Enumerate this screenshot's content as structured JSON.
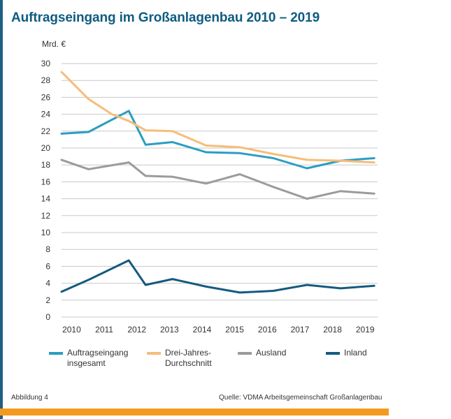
{
  "title": "Auftragseingang im Großanlagenbau 2010 – 2019",
  "figure_label": "Abbildung 4",
  "source": "Quelle: VDMA Arbeitsgemeinschaft Großanlagenbau",
  "colors": {
    "title": "#0e5c80",
    "accent_bar": "#f39a1e",
    "left_bar": "#1f5f84"
  },
  "chart_data": {
    "type": "line",
    "title": "Auftragseingang im Großanlagenbau 2010 – 2019",
    "ylabel": "Mrd. €",
    "xlabel": "",
    "grid": true,
    "ylim": [
      0,
      30
    ],
    "yticks": [
      0,
      2,
      4,
      6,
      8,
      10,
      12,
      14,
      16,
      18,
      20,
      22,
      24,
      26,
      28,
      30
    ],
    "xticks": [
      "2010",
      "2011",
      "2012",
      "2013",
      "2014",
      "2015",
      "2016",
      "2017",
      "2018",
      "2019"
    ],
    "x": [
      2009.6,
      2010.4,
      2011.1,
      2011.6,
      2012.1,
      2012.9,
      2013.9,
      2014.9,
      2015.9,
      2016.9,
      2017.9,
      2018.9
    ],
    "legend_position": "bottom",
    "series": [
      {
        "name": "Auftragseingang insgesamt",
        "legend": [
          "Auftragseingang",
          "insgesamt"
        ],
        "color": "#2a9ec0",
        "values": [
          21.7,
          21.9,
          null,
          24.4,
          20.4,
          20.7,
          19.5,
          19.4,
          18.8,
          17.6,
          18.5,
          18.8
        ]
      },
      {
        "name": "Drei-Jahres-Durchschnitt",
        "legend": [
          "Drei-Jahres-",
          "Durchschnitt"
        ],
        "color": "#f6bd79",
        "values": [
          29.0,
          25.8,
          24.0,
          23.2,
          22.1,
          22.0,
          20.3,
          20.1,
          19.3,
          18.6,
          18.5,
          18.3
        ]
      },
      {
        "name": "Ausland",
        "legend": [
          "Ausland"
        ],
        "color": "#9b9b9b",
        "values": [
          18.6,
          17.5,
          null,
          18.3,
          16.7,
          16.6,
          15.8,
          16.9,
          15.4,
          14.0,
          14.9,
          14.6
        ]
      },
      {
        "name": "Inland",
        "legend": [
          "Inland"
        ],
        "color": "#155a80",
        "values": [
          3.0,
          4.4,
          null,
          6.7,
          3.8,
          4.5,
          3.6,
          2.9,
          3.1,
          3.8,
          3.4,
          3.7
        ]
      }
    ]
  }
}
